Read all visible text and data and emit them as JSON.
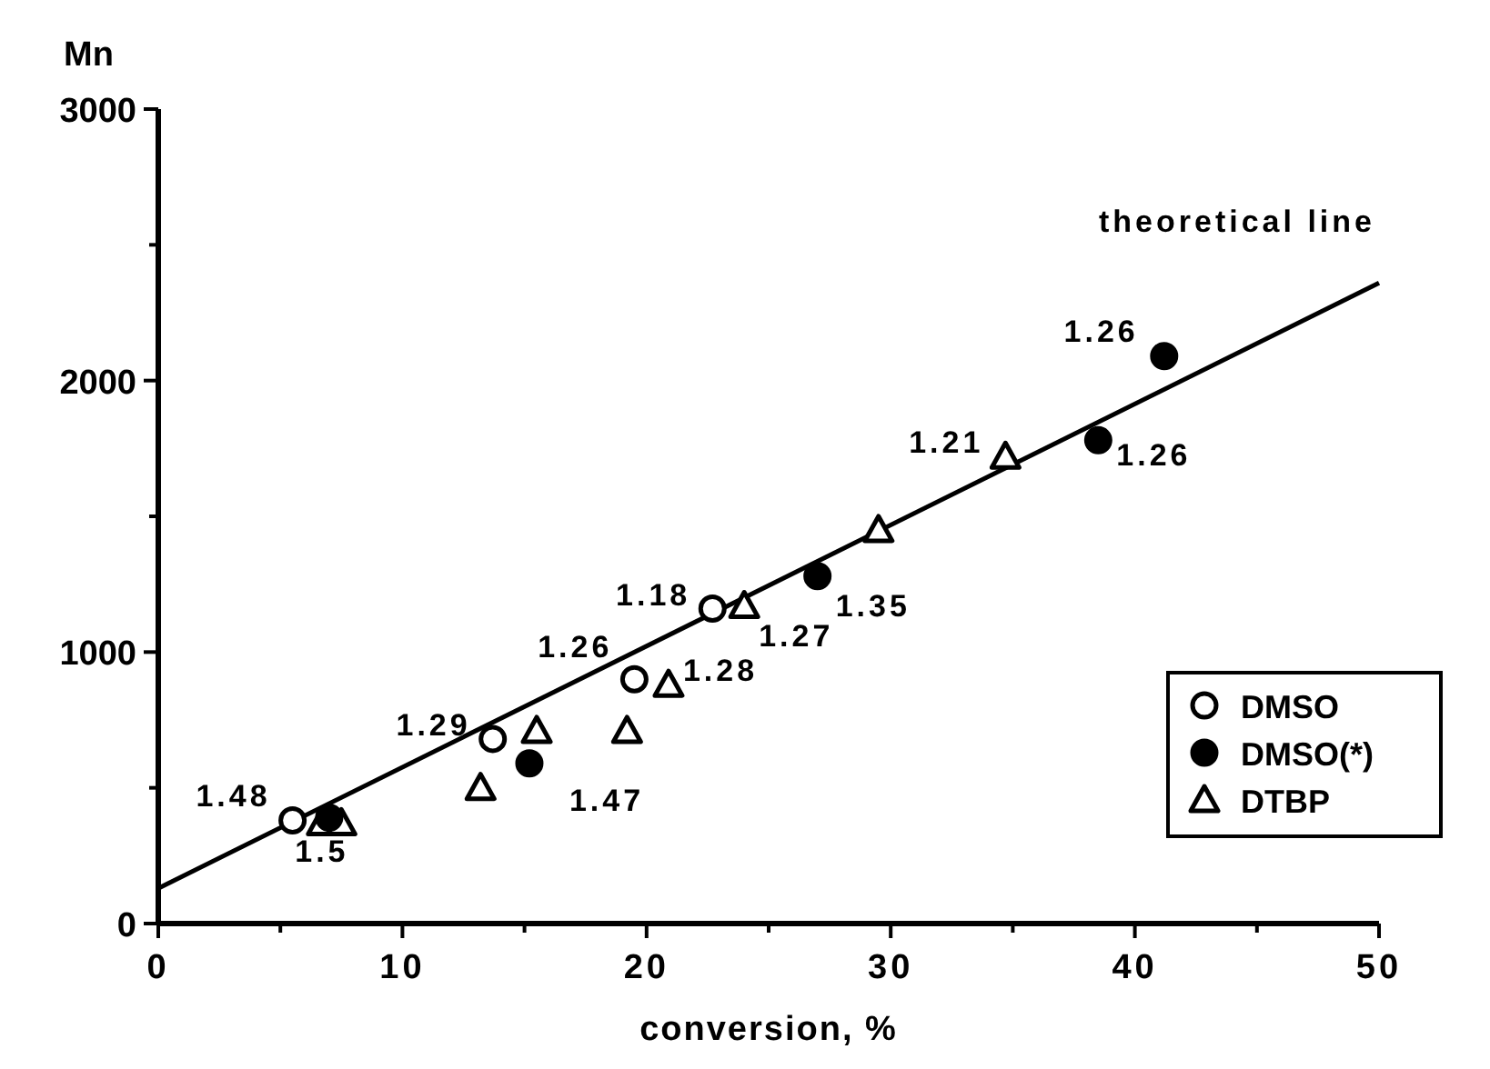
{
  "chart_data": {
    "type": "scatter",
    "xlabel": "conversion, %",
    "ylabel": "Mn",
    "xlim": [
      0,
      50
    ],
    "ylim": [
      0,
      3000
    ],
    "xticks": [
      0,
      {
        "value": 5,
        "label": null
      },
      10,
      {
        "value": 15,
        "label": null
      },
      20,
      {
        "value": 25,
        "label": null
      },
      30,
      {
        "value": 35,
        "label": null
      },
      40,
      {
        "value": 45,
        "label": null
      },
      50
    ],
    "yticks": [
      0,
      {
        "value": 500,
        "label": null
      },
      1000,
      {
        "value": 1500,
        "label": null
      },
      2000,
      {
        "value": 2500,
        "label": null
      },
      3000
    ],
    "grid": false,
    "legend": "bottom right",
    "series": [
      {
        "name": "DMSO",
        "color": "#ffffff",
        "marker": "circle",
        "x": [
          5.5,
          13.7,
          19.5,
          22.7
        ],
        "values": [
          380,
          680,
          900,
          1160
        ]
      },
      {
        "name": "DMSO(*)",
        "color": "#000000",
        "marker": "circle",
        "x": [
          7,
          15.2,
          27,
          38.5,
          41.2
        ],
        "values": [
          390,
          590,
          1280,
          1780,
          2090
        ]
      },
      {
        "name": "DTBP",
        "color": "#ffffff",
        "marker": "triangle",
        "x": [
          6.7,
          7.5,
          13.2,
          15.5,
          19.2,
          20.9,
          24,
          29.5,
          34.7
        ],
        "values": [
          370,
          370,
          500,
          710,
          710,
          880,
          1170,
          1450,
          1720
        ]
      },
      {
        "type": "line",
        "color": "#000000",
        "x": [
          0,
          50
        ],
        "values": [
          130,
          2360
        ]
      }
    ],
    "annotations": [
      {
        "text": "1.48",
        "x": 5.5,
        "y": 380
      },
      {
        "text": "1.5",
        "x": 7,
        "y": 390
      },
      {
        "text": "1.29",
        "x": 13.7,
        "y": 680
      },
      {
        "text": "1.47",
        "x": 15.2,
        "y": 590
      },
      {
        "text": "1.26",
        "x": 19.5,
        "y": 900
      },
      {
        "text": "1.28",
        "x": 20.9,
        "y": 880
      },
      {
        "text": "1.18",
        "x": 22.7,
        "y": 1160
      },
      {
        "text": "1.27",
        "x": 24,
        "y": 1170
      },
      {
        "text": "1.35",
        "x": 27,
        "y": 1280
      },
      {
        "text": "1.21",
        "x": 34.7,
        "y": 1720
      },
      {
        "text": "1.26",
        "x": 38.5,
        "y": 1780
      },
      {
        "text": "1.26",
        "x": 41.2,
        "y": 2090
      },
      {
        "text": "theoretical line",
        "x": 50,
        "y": 2360
      }
    ]
  }
}
